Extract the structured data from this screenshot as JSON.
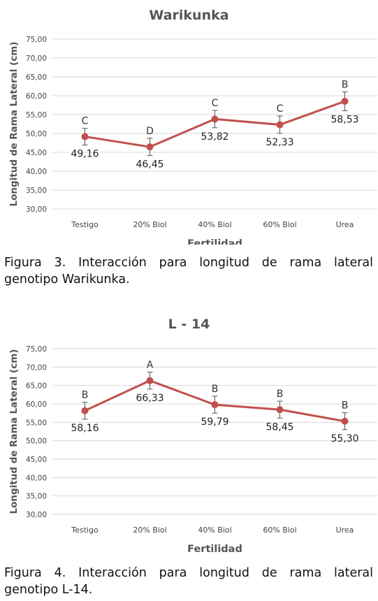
{
  "chart_data": [
    {
      "type": "line",
      "title": "Warikunka",
      "xlabel": "Fertilidad",
      "ylabel": "Longitud de Rama Lateral (cm)",
      "categories": [
        "Testigo",
        "20% Biol",
        "40% Biol",
        "60% Biol",
        "Urea"
      ],
      "values": [
        49.16,
        46.45,
        53.82,
        52.33,
        58.53
      ],
      "value_labels": [
        "49,16",
        "46,45",
        "53,82",
        "52,33",
        "58,53"
      ],
      "letters": [
        "C",
        "D",
        "C",
        "C",
        "B"
      ],
      "error": [
        2.2,
        2.3,
        2.3,
        2.3,
        2.5
      ],
      "ylim": [
        30,
        75
      ],
      "yticks": [
        "30,00",
        "35,00",
        "40,00",
        "45,00",
        "50,00",
        "55,00",
        "60,00",
        "65,00",
        "70,00",
        "75,00"
      ],
      "grid": true,
      "color": "#c0504d"
    },
    {
      "type": "line",
      "title": "L - 14",
      "xlabel": "Fertilidad",
      "ylabel": "Longitud de Rama Lateral (cm)",
      "categories": [
        "Testigo",
        "20% Biol",
        "40% Biol",
        "60% Biol",
        "Urea"
      ],
      "values": [
        58.16,
        66.33,
        59.79,
        58.45,
        55.3
      ],
      "value_labels": [
        "58,16",
        "66,33",
        "59,79",
        "58,45",
        "55,30"
      ],
      "letters": [
        "B",
        "A",
        "B",
        "B",
        "B"
      ],
      "error": [
        2.3,
        2.3,
        2.3,
        2.3,
        2.3
      ],
      "ylim": [
        30,
        75
      ],
      "yticks": [
        "30,00",
        "35,00",
        "40,00",
        "45,00",
        "50,00",
        "55,00",
        "60,00",
        "65,00",
        "70,00",
        "75,00"
      ],
      "grid": true,
      "color": "#c0504d"
    }
  ],
  "captions": [
    {
      "line1": "Figura 3. Interacción para longitud de rama lateral",
      "line2": "genotipo Warikunka."
    },
    {
      "line1": "Figura 4. Interacción para longitud de rama lateral",
      "line2": "genotipo L-14."
    }
  ]
}
